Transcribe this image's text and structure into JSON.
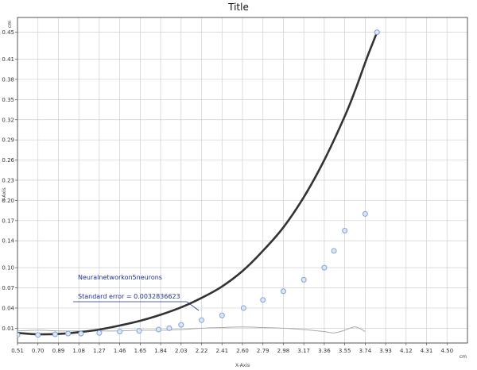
{
  "chart_data": {
    "type": "scatter",
    "title": "Title",
    "xlabel": "X-Axis",
    "ylabel": "Y-Axis",
    "x_unit": "cm",
    "y_unit": "cm",
    "xlim": [
      0.51,
      4.69
    ],
    "ylim": [
      -0.012,
      0.472
    ],
    "x_ticks": [
      "0.51",
      "0.70",
      "0.89",
      "1.08",
      "1.27",
      "1.46",
      "1.65",
      "1.84",
      "2.03",
      "2.22",
      "2.41",
      "2.60",
      "2.79",
      "2.98",
      "3.17",
      "3.36",
      "3.55",
      "3.74",
      "3.93",
      "4.12",
      "4.31",
      "4.50"
    ],
    "y_ticks": [
      "0.01",
      "0.04",
      "0.07",
      "0.10",
      "0.14",
      "0.17",
      "0.20",
      "0.23",
      "0.26",
      "0.29",
      "0.32",
      "0.35",
      "0.38",
      "0.41",
      "0.45"
    ],
    "grid": true,
    "series": [
      {
        "kind": "points",
        "color": "#7fa4d6",
        "x": [
          0.51,
          0.7,
          0.86,
          0.98,
          1.1,
          1.27,
          1.46,
          1.64,
          1.82,
          1.92,
          2.03,
          2.22,
          2.41,
          2.61,
          2.79,
          2.98,
          3.17,
          3.36,
          3.45,
          3.55,
          3.74,
          3.85
        ],
        "y": [
          0.0,
          0.0,
          0.001,
          0.002,
          0.002,
          0.003,
          0.005,
          0.006,
          0.008,
          0.01,
          0.015,
          0.022,
          0.029,
          0.04,
          0.052,
          0.065,
          0.082,
          0.1,
          0.125,
          0.155,
          0.18,
          0.45
        ]
      },
      {
        "kind": "fit",
        "color": "#333333",
        "x": [
          0.51,
          0.7,
          0.89,
          1.08,
          1.27,
          1.46,
          1.65,
          1.84,
          2.03,
          2.22,
          2.41,
          2.6,
          2.79,
          2.98,
          3.17,
          3.36,
          3.55,
          3.65,
          3.74,
          3.8,
          3.85
        ],
        "y": [
          0.003,
          0.001,
          0.0015,
          0.004,
          0.008,
          0.014,
          0.021,
          0.03,
          0.041,
          0.055,
          0.072,
          0.095,
          0.125,
          0.16,
          0.205,
          0.26,
          0.325,
          0.365,
          0.405,
          0.43,
          0.45
        ]
      },
      {
        "kind": "residual",
        "color": "#aaaaaa",
        "x": [
          0.51,
          0.7,
          0.89,
          1.08,
          1.27,
          1.46,
          1.65,
          1.84,
          2.03,
          2.22,
          2.41,
          2.6,
          2.79,
          2.98,
          3.17,
          3.36,
          3.45,
          3.55,
          3.65,
          3.74
        ],
        "y": [
          0.006,
          0.007,
          0.006,
          0.006,
          0.006,
          0.006,
          0.007,
          0.007,
          0.008,
          0.01,
          0.011,
          0.012,
          0.011,
          0.01,
          0.008,
          0.005,
          0.003,
          0.007,
          0.012,
          0.005
        ]
      }
    ],
    "annotation": {
      "lines": [
        "Neuralnetworkon5neurons",
        "Standard error = 0.0032836623"
      ]
    }
  }
}
